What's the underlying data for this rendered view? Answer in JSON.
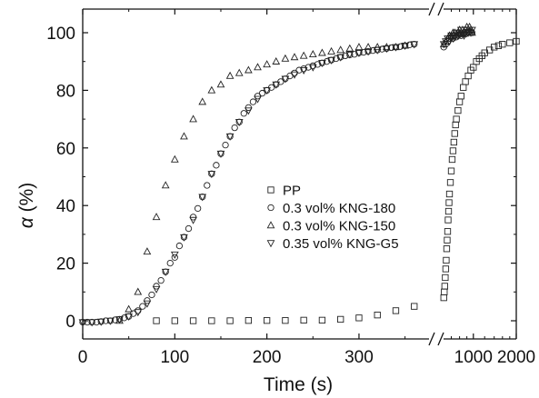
{
  "chart_data": {
    "type": "scatter",
    "xlabel": "Time (s)",
    "ylabel_symbol": "α",
    "ylabel_unit": " (%)",
    "x_break": {
      "left_range": [
        0,
        370
      ],
      "right_range": [
        600,
        2000
      ],
      "scale_right": "log"
    },
    "ylim": [
      -5,
      105
    ],
    "y_ticks": [
      "0",
      "20",
      "40",
      "60",
      "80",
      "100"
    ],
    "x_ticks_left": [
      "0",
      "100",
      "200",
      "300"
    ],
    "x_ticks_right": [
      "1000",
      "2000"
    ],
    "legend_position": "center-right",
    "series": [
      {
        "name": "PP",
        "marker": "square",
        "points": [
          [
            80,
            0
          ],
          [
            100,
            0
          ],
          [
            120,
            0
          ],
          [
            140,
            0
          ],
          [
            160,
            0
          ],
          [
            180,
            0.1
          ],
          [
            200,
            0.1
          ],
          [
            220,
            0.1
          ],
          [
            240,
            0.2
          ],
          [
            260,
            0.2
          ],
          [
            280,
            0.5
          ],
          [
            300,
            1.0
          ],
          [
            320,
            2.0
          ],
          [
            340,
            3.5
          ],
          [
            360,
            5.0
          ],
          [
            620,
            8
          ],
          [
            625,
            10
          ],
          [
            630,
            12
          ],
          [
            635,
            15
          ],
          [
            640,
            18
          ],
          [
            645,
            21
          ],
          [
            650,
            25
          ],
          [
            655,
            28
          ],
          [
            660,
            31
          ],
          [
            665,
            35
          ],
          [
            670,
            38
          ],
          [
            675,
            41
          ],
          [
            680,
            44
          ],
          [
            690,
            48
          ],
          [
            700,
            52
          ],
          [
            710,
            56
          ],
          [
            720,
            59
          ],
          [
            730,
            62
          ],
          [
            740,
            65
          ],
          [
            750,
            68
          ],
          [
            760,
            70
          ],
          [
            780,
            73
          ],
          [
            800,
            76
          ],
          [
            820,
            78
          ],
          [
            850,
            81
          ],
          [
            880,
            83
          ],
          [
            920,
            85
          ],
          [
            960,
            87
          ],
          [
            1000,
            88
          ],
          [
            1050,
            90
          ],
          [
            1100,
            91
          ],
          [
            1150,
            92
          ],
          [
            1200,
            93
          ],
          [
            1300,
            94
          ],
          [
            1400,
            95
          ],
          [
            1500,
            95.5
          ],
          [
            1600,
            96
          ],
          [
            1800,
            96.5
          ],
          [
            2000,
            97
          ]
        ]
      },
      {
        "name": "0.3 vol% KNG-180",
        "marker": "circle",
        "points": [
          [
            0,
            -0.5
          ],
          [
            5,
            -0.5
          ],
          [
            10,
            -0.5
          ],
          [
            15,
            -0.5
          ],
          [
            20,
            -0.3
          ],
          [
            25,
            0
          ],
          [
            30,
            0
          ],
          [
            35,
            0.3
          ],
          [
            40,
            0.5
          ],
          [
            45,
            1
          ],
          [
            50,
            1.5
          ],
          [
            55,
            2.5
          ],
          [
            60,
            3.5
          ],
          [
            65,
            5
          ],
          [
            70,
            7
          ],
          [
            75,
            9
          ],
          [
            80,
            12
          ],
          [
            85,
            14
          ],
          [
            90,
            17
          ],
          [
            95,
            20
          ],
          [
            100,
            22
          ],
          [
            105,
            26
          ],
          [
            110,
            29
          ],
          [
            115,
            32
          ],
          [
            120,
            36
          ],
          [
            125,
            39
          ],
          [
            130,
            43
          ],
          [
            135,
            47
          ],
          [
            140,
            51
          ],
          [
            145,
            54
          ],
          [
            150,
            58
          ],
          [
            155,
            61
          ],
          [
            160,
            64
          ],
          [
            165,
            67
          ],
          [
            170,
            69
          ],
          [
            175,
            72
          ],
          [
            180,
            74
          ],
          [
            185,
            76
          ],
          [
            190,
            78
          ],
          [
            195,
            79
          ],
          [
            200,
            80
          ],
          [
            205,
            81
          ],
          [
            210,
            82
          ],
          [
            215,
            83
          ],
          [
            220,
            84
          ],
          [
            225,
            85
          ],
          [
            230,
            86
          ],
          [
            235,
            87
          ],
          [
            240,
            87.5
          ],
          [
            245,
            88
          ],
          [
            250,
            88.5
          ],
          [
            255,
            89
          ],
          [
            260,
            89.5
          ],
          [
            265,
            90
          ],
          [
            270,
            90.5
          ],
          [
            275,
            91
          ],
          [
            280,
            91.5
          ],
          [
            285,
            92
          ],
          [
            290,
            92.3
          ],
          [
            295,
            92.5
          ],
          [
            300,
            93
          ],
          [
            305,
            93.2
          ],
          [
            310,
            93.5
          ],
          [
            315,
            93.8
          ],
          [
            320,
            94
          ],
          [
            325,
            94.3
          ],
          [
            330,
            94.5
          ],
          [
            335,
            94.8
          ],
          [
            340,
            95
          ],
          [
            345,
            95.2
          ],
          [
            350,
            95.5
          ],
          [
            355,
            95.8
          ],
          [
            360,
            96
          ],
          [
            620,
            95
          ],
          [
            640,
            96
          ],
          [
            660,
            97
          ],
          [
            680,
            98
          ],
          [
            700,
            98.5
          ],
          [
            720,
            98
          ],
          [
            740,
            99
          ],
          [
            760,
            98.5
          ],
          [
            780,
            99
          ],
          [
            800,
            99.5
          ],
          [
            820,
            99
          ],
          [
            840,
            99.5
          ],
          [
            860,
            100
          ],
          [
            880,
            99.5
          ],
          [
            900,
            100
          ],
          [
            920,
            100
          ],
          [
            940,
            100.5
          ],
          [
            960,
            100
          ],
          [
            980,
            100
          ]
        ]
      },
      {
        "name": "0.3 vol% KNG-150",
        "marker": "triangle-up",
        "points": [
          [
            40,
            0
          ],
          [
            50,
            4
          ],
          [
            60,
            10
          ],
          [
            70,
            24
          ],
          [
            80,
            36
          ],
          [
            90,
            47
          ],
          [
            100,
            56
          ],
          [
            110,
            64
          ],
          [
            120,
            70
          ],
          [
            130,
            76
          ],
          [
            140,
            80
          ],
          [
            150,
            82
          ],
          [
            160,
            85
          ],
          [
            170,
            86
          ],
          [
            180,
            87
          ],
          [
            190,
            88
          ],
          [
            200,
            89
          ],
          [
            210,
            90
          ],
          [
            220,
            91
          ],
          [
            230,
            91.5
          ],
          [
            240,
            92
          ],
          [
            250,
            92.5
          ],
          [
            260,
            93
          ],
          [
            270,
            93.5
          ],
          [
            280,
            94
          ],
          [
            290,
            94.5
          ],
          [
            300,
            95
          ],
          [
            310,
            95
          ],
          [
            320,
            95
          ],
          [
            330,
            95
          ],
          [
            340,
            95
          ],
          [
            350,
            95.5
          ],
          [
            620,
            96
          ],
          [
            640,
            97
          ],
          [
            660,
            98
          ],
          [
            680,
            99
          ],
          [
            700,
            99
          ],
          [
            720,
            100
          ],
          [
            740,
            100
          ],
          [
            760,
            99
          ],
          [
            780,
            100
          ],
          [
            800,
            101
          ],
          [
            820,
            100
          ],
          [
            840,
            101
          ],
          [
            860,
            100
          ],
          [
            880,
            101
          ],
          [
            900,
            102
          ],
          [
            920,
            101
          ],
          [
            940,
            102
          ],
          [
            960,
            101
          ],
          [
            980,
            100
          ]
        ]
      },
      {
        "name": "0.35 vol% KNG-G5",
        "marker": "triangle-down",
        "points": [
          [
            0,
            -0.5
          ],
          [
            10,
            -0.5
          ],
          [
            20,
            -0.3
          ],
          [
            30,
            0
          ],
          [
            40,
            0.5
          ],
          [
            50,
            1.5
          ],
          [
            60,
            3
          ],
          [
            70,
            6
          ],
          [
            80,
            11
          ],
          [
            90,
            17
          ],
          [
            100,
            23
          ],
          [
            110,
            29
          ],
          [
            120,
            35
          ],
          [
            130,
            43
          ],
          [
            140,
            51
          ],
          [
            150,
            58
          ],
          [
            160,
            64
          ],
          [
            170,
            69
          ],
          [
            180,
            73
          ],
          [
            190,
            77
          ],
          [
            200,
            80
          ],
          [
            210,
            82
          ],
          [
            220,
            84
          ],
          [
            230,
            85.5
          ],
          [
            240,
            87
          ],
          [
            250,
            88
          ],
          [
            260,
            89.5
          ],
          [
            270,
            90.5
          ],
          [
            280,
            91.5
          ],
          [
            290,
            92.5
          ],
          [
            300,
            93
          ],
          [
            310,
            93.5
          ],
          [
            320,
            94
          ],
          [
            330,
            94.5
          ],
          [
            340,
            95
          ],
          [
            350,
            95.5
          ],
          [
            360,
            96
          ],
          [
            620,
            96
          ],
          [
            640,
            97
          ],
          [
            660,
            98
          ],
          [
            680,
            97
          ],
          [
            700,
            99
          ],
          [
            720,
            98
          ],
          [
            740,
            99
          ],
          [
            760,
            100
          ],
          [
            780,
            99
          ],
          [
            800,
            100
          ],
          [
            820,
            101
          ],
          [
            840,
            100
          ],
          [
            860,
            99
          ],
          [
            880,
            100
          ],
          [
            900,
            101
          ],
          [
            920,
            100
          ],
          [
            940,
            101
          ],
          [
            960,
            100
          ],
          [
            980,
            101
          ]
        ]
      }
    ]
  }
}
